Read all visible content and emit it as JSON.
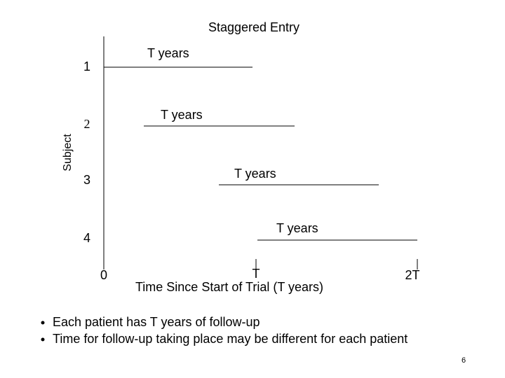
{
  "title": "Staggered Entry",
  "y_axis_label": "Subject",
  "subjects": [
    {
      "label": "1",
      "span_label": "T years"
    },
    {
      "label": "2",
      "span_label": "T years"
    },
    {
      "label": "3",
      "span_label": "T years"
    },
    {
      "label": "4",
      "span_label": "T years"
    }
  ],
  "x_axis": {
    "ticks": [
      "0",
      "T",
      "2T"
    ],
    "label": "Time Since Start of Trial (T years)"
  },
  "bullets": [
    "Each patient has T years of follow-up",
    "Time for follow-up taking place may be different for each patient"
  ],
  "page_number": "6"
}
